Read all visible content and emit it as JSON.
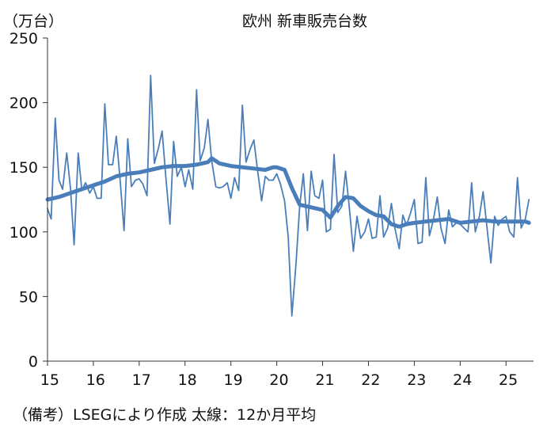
{
  "chart_data": {
    "type": "line",
    "title": "欧州 新車販売台数",
    "ylabel": "（万台）",
    "xlabel": "",
    "ylim": [
      0,
      250
    ],
    "yticks": [
      0,
      50,
      100,
      150,
      200,
      250
    ],
    "xlim": [
      2015.0,
      2025.6
    ],
    "xticks": [
      "15",
      "16",
      "17",
      "18",
      "19",
      "20",
      "21",
      "22",
      "23",
      "24",
      "25"
    ],
    "grid": false,
    "legend": "none",
    "note": "（備考）LSEGにより作成 太線：12か月平均",
    "series": [
      {
        "color": "#4a7ebb",
        "width": 1.8,
        "points": [
          [
            2015.0,
            118
          ],
          [
            2015.08,
            110
          ],
          [
            2015.17,
            188
          ],
          [
            2015.25,
            140
          ],
          [
            2015.33,
            133
          ],
          [
            2015.42,
            161
          ],
          [
            2015.5,
            134
          ],
          [
            2015.58,
            90
          ],
          [
            2015.67,
            161
          ],
          [
            2015.75,
            132
          ],
          [
            2015.83,
            138
          ],
          [
            2015.92,
            130
          ],
          [
            2016.0,
            135
          ],
          [
            2016.08,
            126
          ],
          [
            2016.17,
            126
          ],
          [
            2016.25,
            199
          ],
          [
            2016.33,
            152
          ],
          [
            2016.42,
            152
          ],
          [
            2016.5,
            174
          ],
          [
            2016.58,
            142
          ],
          [
            2016.67,
            101
          ],
          [
            2016.75,
            172
          ],
          [
            2016.83,
            135
          ],
          [
            2016.92,
            140
          ],
          [
            2017.0,
            141
          ],
          [
            2017.08,
            137
          ],
          [
            2017.17,
            128
          ],
          [
            2017.25,
            221
          ],
          [
            2017.33,
            153
          ],
          [
            2017.42,
            165
          ],
          [
            2017.5,
            178
          ],
          [
            2017.58,
            143
          ],
          [
            2017.67,
            106
          ],
          [
            2017.75,
            170
          ],
          [
            2017.83,
            143
          ],
          [
            2017.92,
            150
          ],
          [
            2018.0,
            135
          ],
          [
            2018.08,
            148
          ],
          [
            2018.17,
            133
          ],
          [
            2018.25,
            210
          ],
          [
            2018.33,
            155
          ],
          [
            2018.42,
            165
          ],
          [
            2018.5,
            187
          ],
          [
            2018.58,
            155
          ],
          [
            2018.67,
            135
          ],
          [
            2018.75,
            134
          ],
          [
            2018.83,
            135
          ],
          [
            2018.92,
            138
          ],
          [
            2019.0,
            126
          ],
          [
            2019.08,
            142
          ],
          [
            2019.17,
            132
          ],
          [
            2019.25,
            198
          ],
          [
            2019.33,
            154
          ],
          [
            2019.42,
            164
          ],
          [
            2019.5,
            171
          ],
          [
            2019.58,
            148
          ],
          [
            2019.67,
            124
          ],
          [
            2019.75,
            143
          ],
          [
            2019.83,
            140
          ],
          [
            2019.92,
            140
          ],
          [
            2020.0,
            145
          ],
          [
            2020.08,
            137
          ],
          [
            2020.17,
            124
          ],
          [
            2020.25,
            96
          ],
          [
            2020.33,
            35
          ],
          [
            2020.42,
            76
          ],
          [
            2020.5,
            120
          ],
          [
            2020.58,
            145
          ],
          [
            2020.67,
            101
          ],
          [
            2020.75,
            147
          ],
          [
            2020.83,
            128
          ],
          [
            2020.92,
            126
          ],
          [
            2021.0,
            140
          ],
          [
            2021.08,
            100
          ],
          [
            2021.17,
            102
          ],
          [
            2021.25,
            160
          ],
          [
            2021.33,
            115
          ],
          [
            2021.42,
            120
          ],
          [
            2021.5,
            147
          ],
          [
            2021.58,
            120
          ],
          [
            2021.67,
            85
          ],
          [
            2021.75,
            112
          ],
          [
            2021.83,
            95
          ],
          [
            2021.92,
            100
          ],
          [
            2022.0,
            110
          ],
          [
            2022.08,
            95
          ],
          [
            2022.17,
            96
          ],
          [
            2022.25,
            128
          ],
          [
            2022.33,
            96
          ],
          [
            2022.42,
            103
          ],
          [
            2022.5,
            122
          ],
          [
            2022.58,
            102
          ],
          [
            2022.67,
            87
          ],
          [
            2022.75,
            113
          ],
          [
            2022.83,
            105
          ],
          [
            2022.92,
            115
          ],
          [
            2023.0,
            125
          ],
          [
            2023.08,
            91
          ],
          [
            2023.17,
            92
          ],
          [
            2023.25,
            142
          ],
          [
            2023.33,
            97
          ],
          [
            2023.42,
            110
          ],
          [
            2023.5,
            127
          ],
          [
            2023.58,
            103
          ],
          [
            2023.67,
            91
          ],
          [
            2023.75,
            117
          ],
          [
            2023.83,
            104
          ],
          [
            2023.92,
            107
          ],
          [
            2024.0,
            106
          ],
          [
            2024.08,
            103
          ],
          [
            2024.17,
            100
          ],
          [
            2024.25,
            138
          ],
          [
            2024.33,
            100
          ],
          [
            2024.42,
            112
          ],
          [
            2024.5,
            131
          ],
          [
            2024.58,
            105
          ],
          [
            2024.67,
            76
          ],
          [
            2024.75,
            112
          ],
          [
            2024.83,
            105
          ],
          [
            2024.92,
            110
          ],
          [
            2025.0,
            112
          ],
          [
            2025.08,
            100
          ],
          [
            2025.17,
            96
          ],
          [
            2025.25,
            142
          ],
          [
            2025.33,
            103
          ],
          [
            2025.42,
            110
          ],
          [
            2025.5,
            125
          ]
        ]
      },
      {
        "color": "#4a7ebb",
        "width": 5,
        "points": [
          [
            2015.0,
            125
          ],
          [
            2015.25,
            127
          ],
          [
            2015.5,
            130
          ],
          [
            2015.75,
            133
          ],
          [
            2016.0,
            136
          ],
          [
            2016.25,
            139
          ],
          [
            2016.5,
            143
          ],
          [
            2016.75,
            145
          ],
          [
            2017.0,
            146
          ],
          [
            2017.25,
            148
          ],
          [
            2017.5,
            150
          ],
          [
            2017.75,
            151
          ],
          [
            2018.0,
            151
          ],
          [
            2018.25,
            152
          ],
          [
            2018.5,
            154
          ],
          [
            2018.58,
            157
          ],
          [
            2018.75,
            153
          ],
          [
            2019.0,
            151
          ],
          [
            2019.25,
            150
          ],
          [
            2019.5,
            149
          ],
          [
            2019.75,
            148
          ],
          [
            2019.92,
            150
          ],
          [
            2020.0,
            150
          ],
          [
            2020.17,
            148
          ],
          [
            2020.33,
            134
          ],
          [
            2020.5,
            121
          ],
          [
            2020.75,
            119
          ],
          [
            2021.0,
            117
          ],
          [
            2021.17,
            111
          ],
          [
            2021.33,
            120
          ],
          [
            2021.5,
            127
          ],
          [
            2021.67,
            126
          ],
          [
            2021.83,
            120
          ],
          [
            2022.0,
            116
          ],
          [
            2022.17,
            113
          ],
          [
            2022.33,
            112
          ],
          [
            2022.5,
            106
          ],
          [
            2022.67,
            104
          ],
          [
            2022.83,
            106
          ],
          [
            2023.0,
            107
          ],
          [
            2023.25,
            108
          ],
          [
            2023.5,
            109
          ],
          [
            2023.75,
            110
          ],
          [
            2024.0,
            107
          ],
          [
            2024.25,
            108
          ],
          [
            2024.5,
            109
          ],
          [
            2024.75,
            108
          ],
          [
            2025.0,
            108
          ],
          [
            2025.25,
            108
          ],
          [
            2025.42,
            108
          ],
          [
            2025.5,
            107
          ]
        ]
      }
    ]
  }
}
